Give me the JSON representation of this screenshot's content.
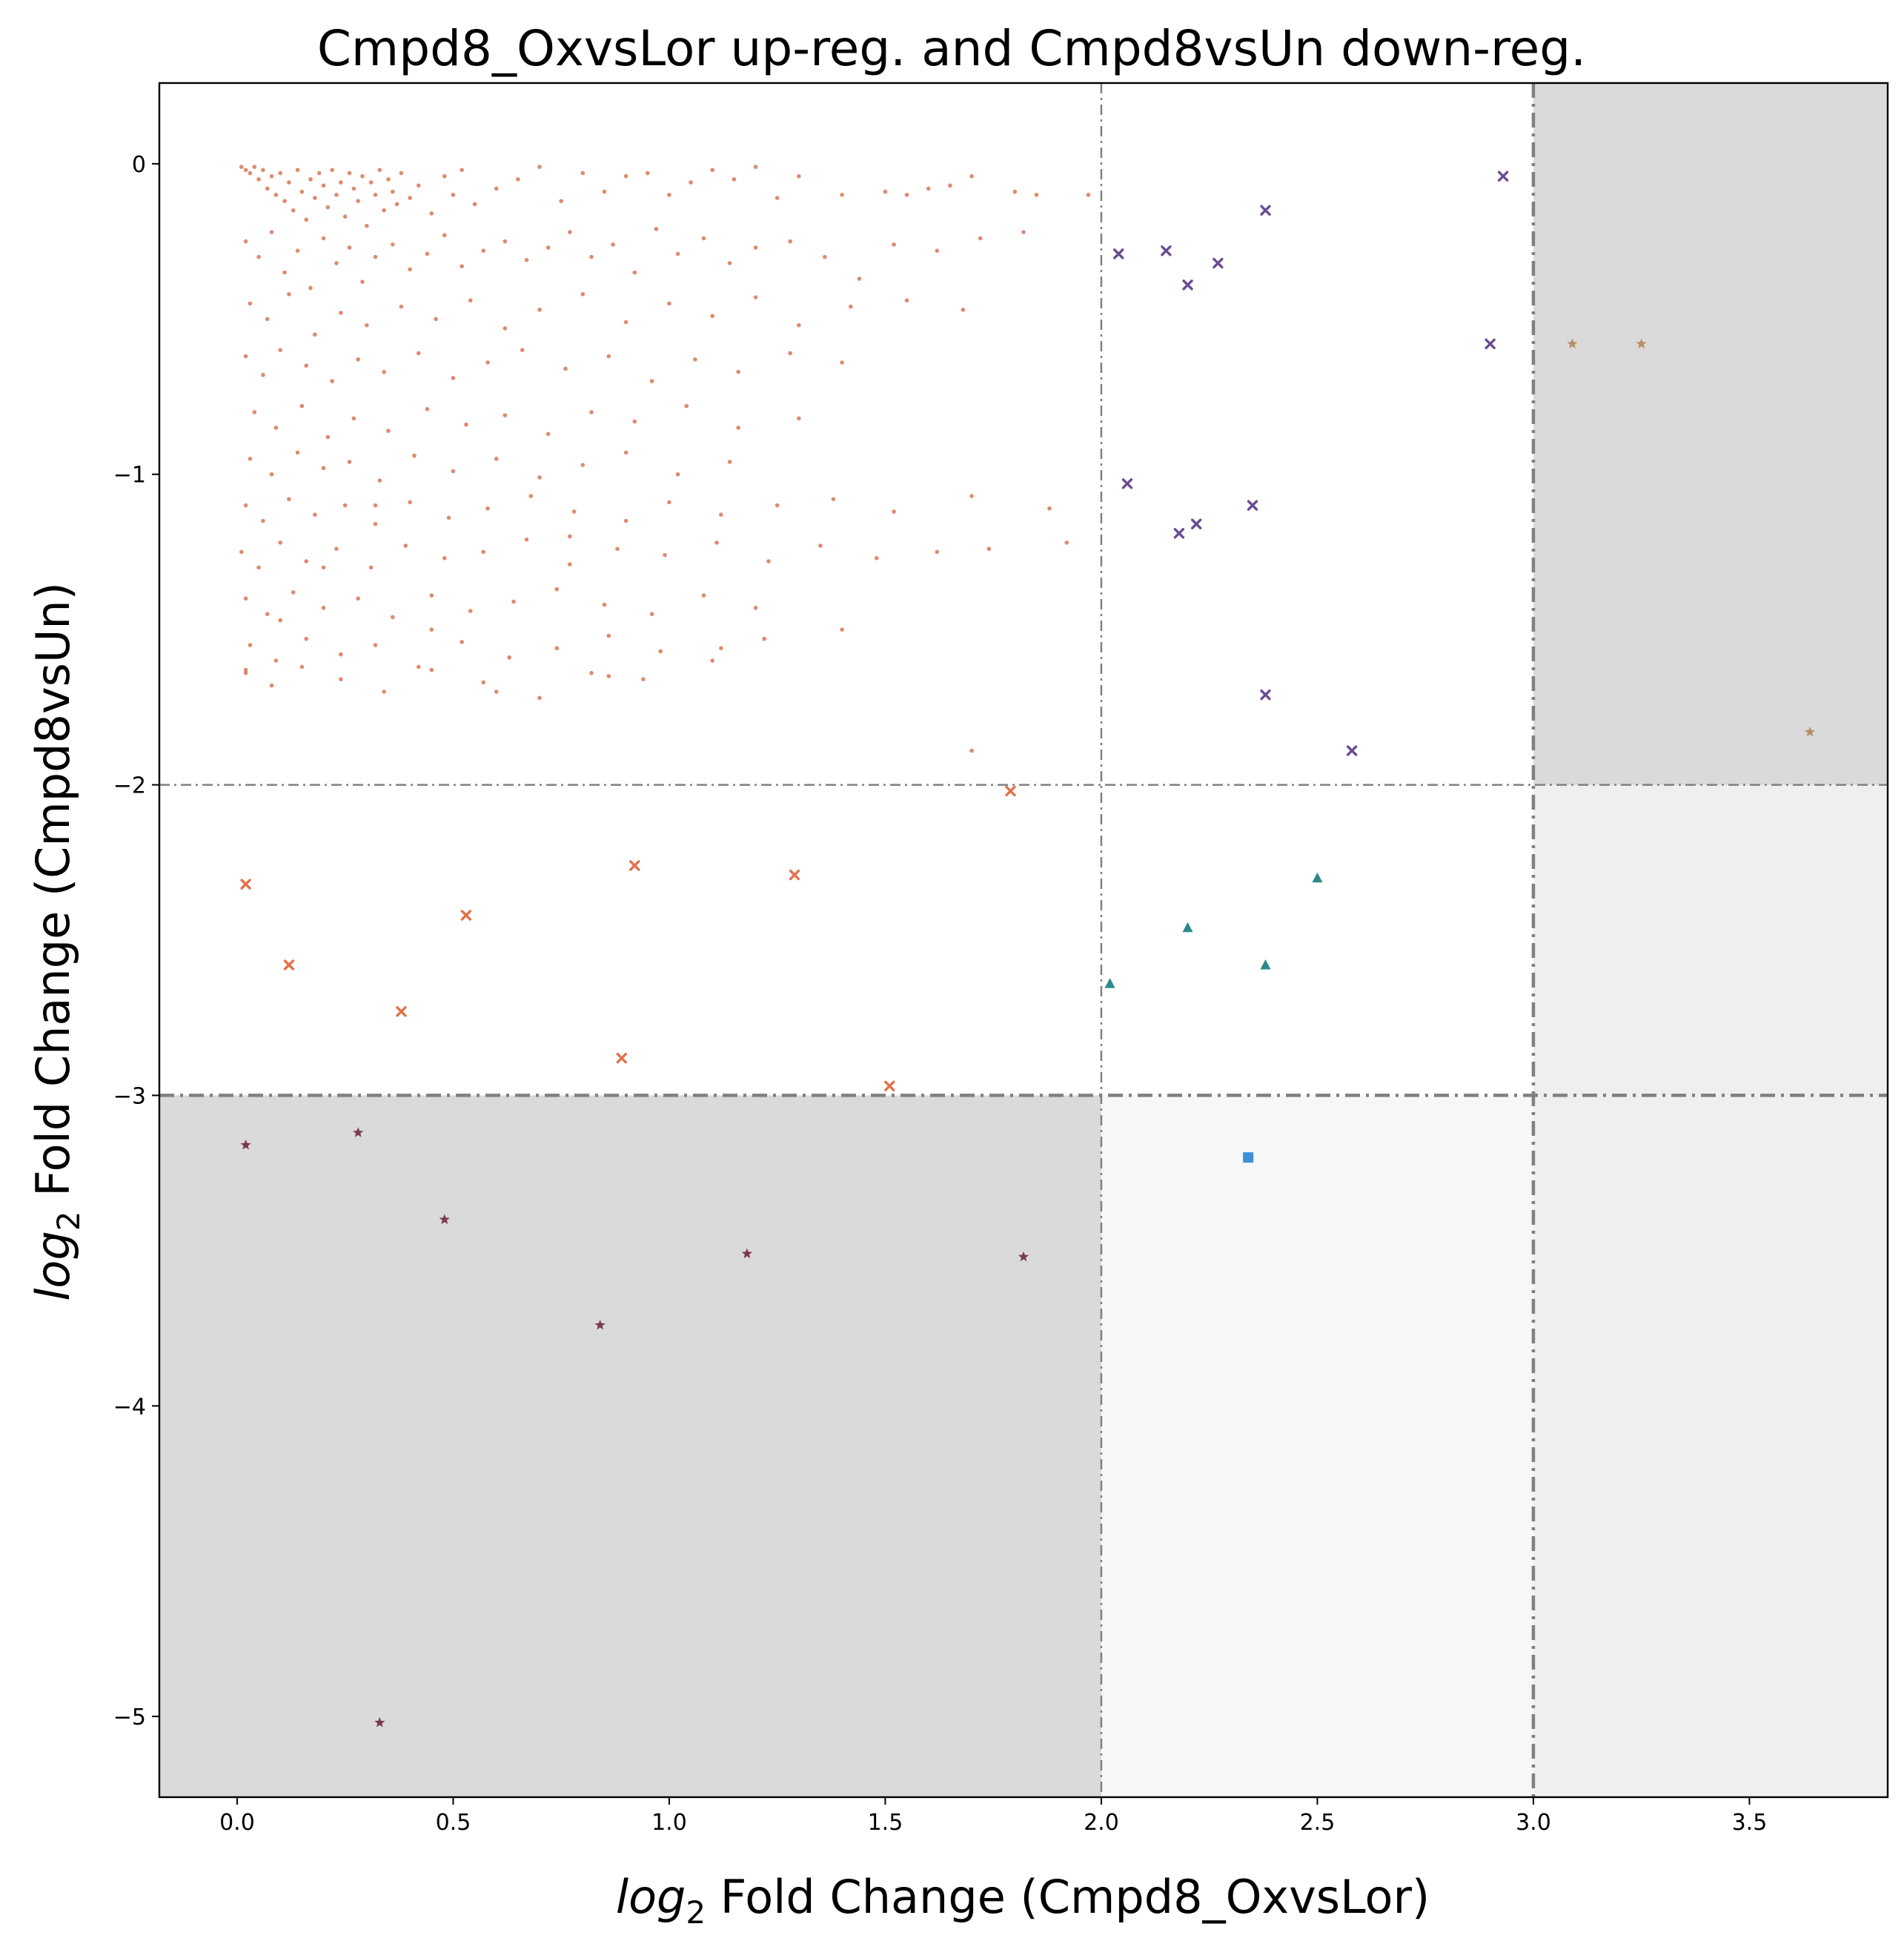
{
  "chart_data": {
    "type": "scatter",
    "title": "Cmpd8_OxvsLor up-reg. and Cmpd8vsUn down-reg.",
    "xlabel_italic": "log",
    "xlabel_sub": "2",
    "xlabel_rest": " Fold Change (Cmpd8_OxvsLor)",
    "ylabel_italic": "log",
    "ylabel_sub": "2",
    "ylabel_rest": " Fold Change (Cmpd8vsUn)",
    "xlim": [
      -0.18,
      3.82
    ],
    "ylim": [
      -5.26,
      0.26
    ],
    "xticks": [
      0.0,
      0.5,
      1.0,
      1.5,
      2.0,
      2.5,
      3.0,
      3.5
    ],
    "xtick_labels": [
      "0.0",
      "0.5",
      "1.0",
      "1.5",
      "2.0",
      "2.5",
      "3.0",
      "3.5"
    ],
    "yticks": [
      0,
      -1,
      -2,
      -3,
      -4,
      -5
    ],
    "ytick_labels": [
      "0",
      "−1",
      "−2",
      "−3",
      "−4",
      "−5"
    ],
    "grid": false,
    "threshold_lines": {
      "x_thin": 2.0,
      "x_thick": 3.0,
      "y_thin": -2.0,
      "y_thick": -3.0,
      "color": "#808080"
    },
    "shaded_regions": [
      {
        "x": [
          3.0,
          3.82
        ],
        "y": [
          -2.0,
          0.26
        ],
        "color": "#dadada"
      },
      {
        "x": [
          3.0,
          3.82
        ],
        "y": [
          -5.26,
          -2.0
        ],
        "color": "#efefef"
      },
      {
        "x": [
          -0.18,
          2.0
        ],
        "y": [
          -5.26,
          -3.0
        ],
        "color": "#dadada"
      },
      {
        "x": [
          2.0,
          3.0
        ],
        "y": [
          -5.26,
          -3.0
        ],
        "color": "#f7f7f7"
      }
    ],
    "series": [
      {
        "marker": "dot",
        "color": "#d2643f",
        "x": [
          0.01,
          0.02,
          0.03,
          0.04,
          0.05,
          0.06,
          0.07,
          0.08,
          0.09,
          0.1,
          0.11,
          0.12,
          0.13,
          0.14,
          0.15,
          0.16,
          0.17,
          0.18,
          0.19,
          0.2,
          0.21,
          0.22,
          0.23,
          0.24,
          0.25,
          0.26,
          0.27,
          0.28,
          0.29,
          0.3,
          0.31,
          0.32,
          0.33,
          0.34,
          0.35,
          0.36,
          0.37,
          0.38,
          0.4,
          0.42,
          0.45,
          0.48,
          0.5,
          0.52,
          0.55,
          0.6,
          0.65,
          0.7,
          0.75,
          0.8,
          0.85,
          0.9,
          0.95,
          1.0,
          1.05,
          1.1,
          1.15,
          1.2,
          1.25,
          1.3,
          1.4,
          1.5,
          1.55,
          1.6,
          1.65,
          1.7,
          1.8,
          1.85,
          1.97,
          0.02,
          0.05,
          0.08,
          0.11,
          0.14,
          0.17,
          0.2,
          0.23,
          0.26,
          0.29,
          0.32,
          0.36,
          0.4,
          0.44,
          0.48,
          0.52,
          0.57,
          0.62,
          0.67,
          0.72,
          0.77,
          0.82,
          0.87,
          0.92,
          0.97,
          1.02,
          1.08,
          1.14,
          1.2,
          1.28,
          1.36,
          1.44,
          1.52,
          1.62,
          1.72,
          1.82,
          0.03,
          0.07,
          0.12,
          0.18,
          0.24,
          0.3,
          0.38,
          0.46,
          0.54,
          0.62,
          0.7,
          0.8,
          0.9,
          1.0,
          1.1,
          1.2,
          1.3,
          1.42,
          1.55,
          1.68,
          0.02,
          0.06,
          0.1,
          0.16,
          0.22,
          0.28,
          0.34,
          0.42,
          0.5,
          0.58,
          0.66,
          0.76,
          0.86,
          0.96,
          1.06,
          1.16,
          1.28,
          1.4,
          0.04,
          0.09,
          0.15,
          0.21,
          0.27,
          0.35,
          0.44,
          0.53,
          0.62,
          0.72,
          0.82,
          0.92,
          1.04,
          1.16,
          1.3,
          0.03,
          0.08,
          0.14,
          0.2,
          0.26,
          0.33,
          0.41,
          0.5,
          0.6,
          0.7,
          0.8,
          0.9,
          1.02,
          1.14,
          0.02,
          0.06,
          0.12,
          0.18,
          0.25,
          0.32,
          0.4,
          0.49,
          0.58,
          0.68,
          0.78,
          0.9,
          1.0,
          1.12,
          1.25,
          1.38,
          1.52,
          1.7,
          1.88,
          0.01,
          0.05,
          0.1,
          0.16,
          0.23,
          0.31,
          0.39,
          0.48,
          0.57,
          0.67,
          0.77,
          0.88,
          0.99,
          1.11,
          1.23,
          1.35,
          1.48,
          1.62,
          1.74,
          1.92,
          0.02,
          0.07,
          0.13,
          0.2,
          0.28,
          0.36,
          0.45,
          0.54,
          0.64,
          0.74,
          0.85,
          0.96,
          1.08,
          1.2,
          0.03,
          0.09,
          0.16,
          0.24,
          0.32,
          0.42,
          0.52,
          0.63,
          0.74,
          0.86,
          0.98,
          1.1,
          1.22,
          1.4,
          0.02,
          0.08,
          0.15,
          0.24,
          0.34,
          0.45,
          0.57,
          0.7,
          0.82,
          0.94,
          1.12,
          0.02,
          0.1,
          0.2,
          0.32,
          0.45,
          0.6,
          0.77,
          0.86,
          1.7
        ],
        "y": [
          -0.01,
          -0.02,
          -0.03,
          -0.01,
          -0.05,
          -0.02,
          -0.08,
          -0.04,
          -0.1,
          -0.03,
          -0.12,
          -0.06,
          -0.15,
          -0.02,
          -0.09,
          -0.18,
          -0.05,
          -0.11,
          -0.03,
          -0.07,
          -0.14,
          -0.02,
          -0.1,
          -0.06,
          -0.17,
          -0.03,
          -0.08,
          -0.12,
          -0.04,
          -0.2,
          -0.06,
          -0.1,
          -0.02,
          -0.15,
          -0.05,
          -0.09,
          -0.13,
          -0.03,
          -0.11,
          -0.07,
          -0.16,
          -0.04,
          -0.1,
          -0.02,
          -0.13,
          -0.08,
          -0.05,
          -0.01,
          -0.12,
          -0.03,
          -0.09,
          -0.04,
          -0.03,
          -0.1,
          -0.06,
          -0.02,
          -0.05,
          -0.01,
          -0.11,
          -0.04,
          -0.1,
          -0.09,
          -0.1,
          -0.08,
          -0.07,
          -0.04,
          -0.09,
          -0.1,
          -0.1,
          -0.25,
          -0.3,
          -0.22,
          -0.35,
          -0.28,
          -0.4,
          -0.24,
          -0.32,
          -0.27,
          -0.38,
          -0.3,
          -0.26,
          -0.34,
          -0.29,
          -0.23,
          -0.33,
          -0.28,
          -0.25,
          -0.31,
          -0.27,
          -0.22,
          -0.3,
          -0.26,
          -0.35,
          -0.21,
          -0.29,
          -0.24,
          -0.32,
          -0.27,
          -0.25,
          -0.3,
          -0.37,
          -0.26,
          -0.28,
          -0.24,
          -0.22,
          -0.45,
          -0.5,
          -0.42,
          -0.55,
          -0.48,
          -0.52,
          -0.46,
          -0.5,
          -0.44,
          -0.53,
          -0.47,
          -0.42,
          -0.51,
          -0.45,
          -0.49,
          -0.43,
          -0.52,
          -0.46,
          -0.44,
          -0.47,
          -0.62,
          -0.68,
          -0.6,
          -0.65,
          -0.7,
          -0.63,
          -0.67,
          -0.61,
          -0.69,
          -0.64,
          -0.6,
          -0.66,
          -0.62,
          -0.7,
          -0.63,
          -0.67,
          -0.61,
          -0.64,
          -0.8,
          -0.85,
          -0.78,
          -0.88,
          -0.82,
          -0.86,
          -0.79,
          -0.84,
          -0.81,
          -0.87,
          -0.8,
          -0.83,
          -0.78,
          -0.85,
          -0.82,
          -0.95,
          -1.0,
          -0.93,
          -0.98,
          -0.96,
          -1.02,
          -0.94,
          -0.99,
          -0.95,
          -1.01,
          -0.97,
          -0.93,
          -1.0,
          -0.96,
          -1.1,
          -1.15,
          -1.08,
          -1.13,
          -1.1,
          -1.16,
          -1.09,
          -1.14,
          -1.11,
          -1.07,
          -1.12,
          -1.15,
          -1.09,
          -1.13,
          -1.1,
          -1.08,
          -1.12,
          -1.07,
          -1.11,
          -1.25,
          -1.3,
          -1.22,
          -1.28,
          -1.24,
          -1.3,
          -1.23,
          -1.27,
          -1.25,
          -1.21,
          -1.29,
          -1.24,
          -1.26,
          -1.22,
          -1.28,
          -1.23,
          -1.27,
          -1.25,
          -1.24,
          -1.22,
          -1.4,
          -1.45,
          -1.38,
          -1.43,
          -1.4,
          -1.46,
          -1.39,
          -1.44,
          -1.41,
          -1.37,
          -1.42,
          -1.45,
          -1.39,
          -1.43,
          -1.55,
          -1.6,
          -1.53,
          -1.58,
          -1.55,
          -1.62,
          -1.54,
          -1.59,
          -1.56,
          -1.52,
          -1.57,
          -1.6,
          -1.53,
          -1.5,
          -1.64,
          -1.68,
          -1.62,
          -1.66,
          -1.7,
          -1.63,
          -1.67,
          -1.72,
          -1.64,
          -1.66,
          -1.56,
          -1.63,
          -1.47,
          -1.3,
          -1.1,
          -1.5,
          -1.7,
          -1.2,
          -1.65,
          -1.89
        ]
      },
      {
        "marker": "x",
        "color": "#6a4c93",
        "x": [
          2.04,
          2.15,
          2.2,
          2.27,
          2.38,
          2.9,
          2.93,
          2.06,
          2.18,
          2.22,
          2.35,
          2.38,
          2.58
        ],
        "y": [
          -0.29,
          -0.28,
          -0.39,
          -0.32,
          -0.15,
          -0.58,
          -0.04,
          -1.03,
          -1.19,
          -1.16,
          -1.1,
          -1.71,
          -1.89
        ]
      },
      {
        "marker": "x",
        "color": "#e2714a",
        "x": [
          0.02,
          0.12,
          0.38,
          0.53,
          0.89,
          0.92,
          1.29,
          1.51,
          1.79
        ],
        "y": [
          -2.32,
          -2.58,
          -2.73,
          -2.42,
          -2.88,
          -2.26,
          -2.29,
          -2.97,
          -2.02
        ]
      },
      {
        "marker": "triangle",
        "color": "#2a8a8a",
        "x": [
          2.02,
          2.2,
          2.38,
          2.5
        ],
        "y": [
          -2.64,
          -2.46,
          -2.58,
          -2.3
        ]
      },
      {
        "marker": "square",
        "color": "#3f8fd8",
        "x": [
          2.34
        ],
        "y": [
          -3.2
        ]
      },
      {
        "marker": "star",
        "color": "#7a3a55",
        "x": [
          0.02,
          0.28,
          0.48,
          0.84,
          1.18,
          1.82,
          0.33
        ],
        "y": [
          -3.16,
          -3.12,
          -3.4,
          -3.74,
          -3.51,
          -3.52,
          -5.02
        ]
      },
      {
        "marker": "star",
        "color": "#b59068",
        "x": [
          3.09,
          3.25,
          3.64
        ],
        "y": [
          -0.58,
          -0.58,
          -1.83
        ]
      }
    ]
  }
}
